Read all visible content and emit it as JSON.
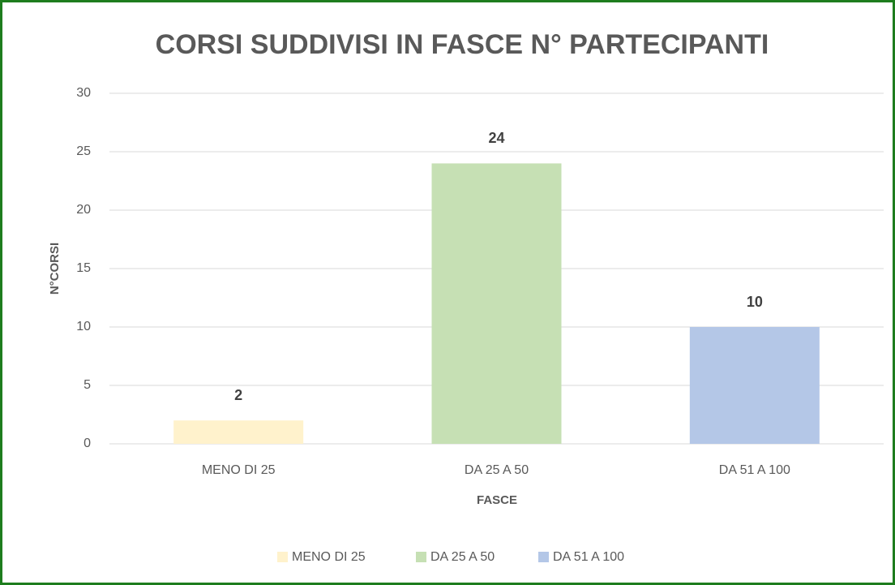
{
  "chart_data": {
    "type": "bar",
    "title": "CORSI SUDDIVISI IN FASCE N° PARTECIPANTI",
    "x_label": "FASCE",
    "y_label": "N°CORSI",
    "categories": [
      "MENO DI 25",
      "DA 25 A 50",
      "DA 51 A 100"
    ],
    "values": [
      2,
      24,
      10
    ],
    "colors": [
      "#fff2cc",
      "#c6e0b4",
      "#b4c7e7"
    ],
    "ylim": [
      0,
      30
    ],
    "yticks": [
      0,
      5,
      10,
      15,
      20,
      25,
      30
    ],
    "grid": true,
    "legend": "bottom"
  }
}
